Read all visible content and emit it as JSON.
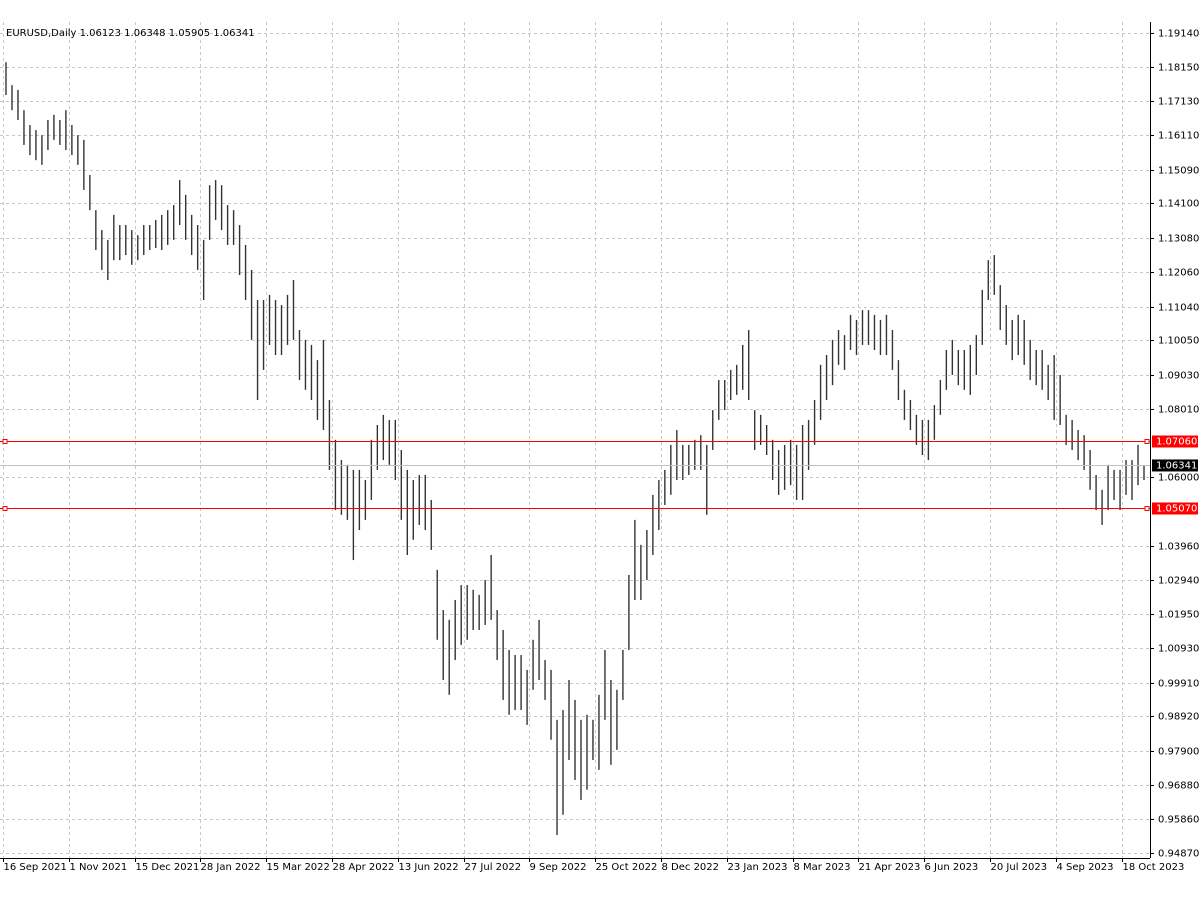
{
  "chart_data": {
    "type": "hilo",
    "symbol": "EURUSD,Daily",
    "ohlc": [
      1.06123,
      1.06348,
      1.05905,
      1.06341
    ],
    "bar_color": "#000000",
    "grid": true,
    "high": [
      1.1828,
      1.176,
      1.1746,
      1.1686,
      1.1642,
      1.1627,
      1.1612,
      1.1657,
      1.1672,
      1.1657,
      1.1686,
      1.1642,
      1.1612,
      1.1598,
      1.1494,
      1.139,
      1.1331,
      1.1302,
      1.1376,
      1.1346,
      1.1346,
      1.1331,
      1.1316,
      1.1346,
      1.1346,
      1.1361,
      1.1376,
      1.139,
      1.1405,
      1.1479,
      1.1435,
      1.1376,
      1.1346,
      1.1302,
      1.1464,
      1.1479,
      1.1464,
      1.1405,
      1.139,
      1.1346,
      1.1287,
      1.1213,
      1.1124,
      1.1124,
      1.1139,
      1.1124,
      1.1109,
      1.1139,
      1.1183,
      1.1035,
      1.1006,
      1.0991,
      1.0946,
      1.1006,
      1.0828,
      1.071,
      1.065,
      1.0636,
      1.0621,
      1.0621,
      1.0591,
      1.071,
      1.0754,
      1.0784,
      1.0769,
      1.0769,
      1.068,
      1.0621,
      1.0591,
      1.0606,
      1.0606,
      1.0532,
      1.0325,
      1.0206,
      1.0177,
      1.0236,
      1.028,
      1.028,
      1.0266,
      1.0251,
      1.0295,
      1.0369,
      1.0206,
      1.0147,
      1.0088,
      1.0073,
      1.0073,
      1.0029,
      1.0118,
      1.0177,
      1.0058,
      1.0029,
      0.9881,
      0.991,
      0.9999,
      0.994,
      0.9881,
      0.9896,
      0.9881,
      0.9955,
      1.0088,
      0.9999,
      0.997,
      1.0088,
      1.031,
      1.0473,
      1.0399,
      1.0443,
      1.0547,
      1.0591,
      1.0621,
      1.0695,
      1.0739,
      1.0695,
      1.0695,
      1.071,
      1.0724,
      1.0695,
      1.0798,
      1.0887,
      1.0887,
      1.0917,
      1.0932,
      1.0991,
      1.1035,
      1.0798,
      1.0784,
      1.0754,
      1.071,
      1.068,
      1.0695,
      1.071,
      1.0695,
      1.0754,
      1.0769,
      1.0828,
      1.0932,
      1.0961,
      1.1006,
      1.1035,
      1.102,
      1.108,
      1.1065,
      1.1094,
      1.1094,
      1.108,
      1.1065,
      1.108,
      1.1035,
      1.0946,
      1.0858,
      1.0828,
      1.0784,
      1.0769,
      1.0769,
      1.0813,
      1.0887,
      1.0976,
      1.1006,
      1.0976,
      1.0976,
      1.0991,
      1.102,
      1.1154,
      1.1242,
      1.1257,
      1.1168,
      1.1109,
      1.1065,
      1.108,
      1.1065,
      1.1006,
      1.0976,
      1.0976,
      1.0932,
      1.0961,
      1.0902,
      1.0784,
      1.0769,
      1.0739,
      1.0724,
      1.068,
      1.0606,
      1.0562,
      1.0636,
      1.0621,
      1.0621,
      1.065,
      1.065,
      1.0695,
      1.0635
    ],
    "low": [
      1.1731,
      1.1686,
      1.1657,
      1.1583,
      1.1553,
      1.1538,
      1.1524,
      1.1568,
      1.1598,
      1.1583,
      1.1568,
      1.1553,
      1.1524,
      1.145,
      1.139,
      1.1272,
      1.1213,
      1.1183,
      1.1242,
      1.1242,
      1.1257,
      1.1228,
      1.1242,
      1.1257,
      1.1272,
      1.1278,
      1.1272,
      1.1287,
      1.1302,
      1.1346,
      1.1302,
      1.1257,
      1.1213,
      1.1124,
      1.1302,
      1.1361,
      1.1331,
      1.1287,
      1.1287,
      1.1198,
      1.1124,
      1.1006,
      1.0828,
      1.0917,
      1.0991,
      1.0961,
      1.0961,
      1.0991,
      1.1006,
      1.0887,
      1.0858,
      1.0828,
      1.0769,
      1.0739,
      1.0621,
      1.0502,
      1.0488,
      1.0473,
      1.0354,
      1.0443,
      1.0473,
      1.0532,
      1.0621,
      1.065,
      1.0636,
      1.0591,
      1.0473,
      1.0369,
      1.0414,
      1.0458,
      1.0443,
      1.0384,
      1.0118,
      0.9999,
      0.9955,
      1.0058,
      1.0103,
      1.0118,
      1.0147,
      1.0147,
      1.0162,
      1.0177,
      1.0058,
      0.994,
      0.9896,
      0.991,
      0.991,
      0.9866,
      0.997,
      0.9999,
      0.994,
      0.9822,
      0.954,
      0.96,
      0.9762,
      0.9703,
      0.9644,
      0.9674,
      0.9762,
      0.9733,
      0.9881,
      0.9748,
      0.9792,
      0.994,
      1.0088,
      1.0236,
      1.0236,
      1.0295,
      1.0369,
      1.0443,
      1.0517,
      1.0547,
      1.0591,
      1.0591,
      1.0606,
      1.0621,
      1.0621,
      1.0488,
      1.068,
      1.0769,
      1.0798,
      1.0828,
      1.0843,
      1.0858,
      1.0828,
      1.068,
      1.0695,
      1.0665,
      1.0591,
      1.0547,
      1.0562,
      1.0576,
      1.0532,
      1.0532,
      1.0621,
      1.0695,
      1.0769,
      1.0828,
      1.0872,
      1.0932,
      1.0917,
      1.0976,
      1.0961,
      1.0991,
      1.0991,
      1.0976,
      1.0961,
      1.0961,
      1.0917,
      1.0828,
      1.0769,
      1.0739,
      1.0695,
      1.0665,
      1.065,
      1.071,
      1.0784,
      1.0858,
      1.0902,
      1.0872,
      1.0858,
      1.0843,
      1.0902,
      1.0991,
      1.1124,
      1.1139,
      1.1035,
      1.0991,
      1.0946,
      1.0961,
      1.0932,
      1.0887,
      1.0872,
      1.0858,
      1.0828,
      1.0769,
      1.0754,
      1.0695,
      1.068,
      1.065,
      1.0621,
      1.0562,
      1.0502,
      1.0458,
      1.0502,
      1.0532,
      1.0502,
      1.0547,
      1.0532,
      1.0576,
      1.0591
    ],
    "ylim": [
      0.9472,
      1.1947
    ],
    "yticks": [
      {
        "value": 1.1914,
        "label": "1.19140"
      },
      {
        "value": 1.1815,
        "label": "1.18150"
      },
      {
        "value": 1.1713,
        "label": "1.17130"
      },
      {
        "value": 1.1611,
        "label": "1.16110"
      },
      {
        "value": 1.1509,
        "label": "1.15090"
      },
      {
        "value": 1.141,
        "label": "1.14100"
      },
      {
        "value": 1.1308,
        "label": "1.13080"
      },
      {
        "value": 1.1206,
        "label": "1.12060"
      },
      {
        "value": 1.1104,
        "label": "1.11040"
      },
      {
        "value": 1.1005,
        "label": "1.10050"
      },
      {
        "value": 1.0903,
        "label": "1.09030"
      },
      {
        "value": 1.0801,
        "label": "1.08010"
      },
      {
        "value": 1.06,
        "label": "1.06000"
      },
      {
        "value": 1.0396,
        "label": "1.03960"
      },
      {
        "value": 1.0294,
        "label": "1.02940"
      },
      {
        "value": 1.0195,
        "label": "1.01950"
      },
      {
        "value": 1.0093,
        "label": "1.00930"
      },
      {
        "value": 0.9991,
        "label": "0.99910"
      },
      {
        "value": 0.9892,
        "label": "0.98920"
      },
      {
        "value": 0.979,
        "label": "0.97900"
      },
      {
        "value": 0.9688,
        "label": "0.96880"
      },
      {
        "value": 0.9586,
        "label": "0.95860"
      },
      {
        "value": 0.9487,
        "label": "0.94870"
      }
    ],
    "x_labels": [
      "16 Sep 2021",
      "1 Nov 2021",
      "15 Dec 2021",
      "28 Jan 2022",
      "15 Mar 2022",
      "28 Apr 2022",
      "13 Jun 2022",
      "27 Jul 2022",
      "9 Sep 2022",
      "25 Oct 2022",
      "8 Dec 2022",
      "23 Jan 2023",
      "8 Mar 2023",
      "21 Apr 2023",
      "6 Jun 2023",
      "20 Jul 2023",
      "4 Sep 2023",
      "18 Oct 2023"
    ],
    "levels": [
      {
        "value": 1.0706,
        "label": "1.07060",
        "color": "#ff0000"
      },
      {
        "value": 1.0507,
        "label": "1.05070",
        "color": "#ff0000"
      }
    ],
    "last_price": 1.06341
  }
}
